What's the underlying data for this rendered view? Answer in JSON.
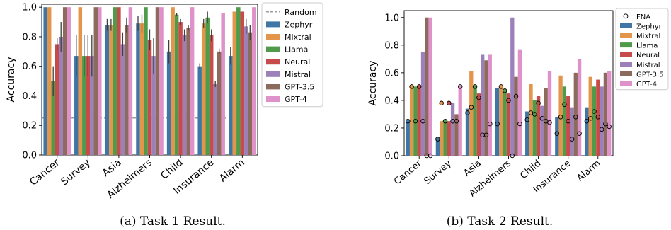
{
  "chart_data": [
    {
      "type": "bar",
      "caption": "(a) Task 1 Result.",
      "ylabel": "Accuracy",
      "ylim": [
        0,
        1.02
      ],
      "yticks": [
        "0.0",
        "0.2",
        "0.4",
        "0.6",
        "0.8",
        "1.0"
      ],
      "categories": [
        "Cancer",
        "Survey",
        "Asia",
        "Alzheimers",
        "Child",
        "Insurance",
        "Alarm"
      ],
      "random_baseline": {
        "name": "Random",
        "value": 0.25,
        "style": "dashed",
        "color": "#7f7f7f"
      },
      "legend_position": "right",
      "series": [
        {
          "name": "Zephyr",
          "color": "#3f76a6",
          "values": [
            1.0,
            0.67,
            0.88,
            0.89,
            0.7,
            0.6,
            0.67
          ],
          "errors": [
            0.0,
            0.14,
            0.04,
            0.05,
            0.08,
            0.02,
            0.06
          ]
        },
        {
          "name": "Mixtral",
          "color": "#e3954b",
          "values": [
            1.0,
            1.0,
            0.88,
            0.89,
            1.0,
            0.89,
            0.97
          ],
          "errors": [
            0.0,
            0.0,
            0.04,
            0.06,
            0.0,
            0.03,
            0.0
          ]
        },
        {
          "name": "Llama",
          "color": "#4f9b4a",
          "values": [
            0.5,
            0.67,
            1.0,
            1.0,
            0.95,
            0.93,
            1.0
          ],
          "errors": [
            0.1,
            0.14,
            0.0,
            0.0,
            0.01,
            0.04,
            0.0
          ]
        },
        {
          "name": "Neural",
          "color": "#c84b4b",
          "values": [
            0.75,
            0.67,
            1.0,
            0.78,
            0.9,
            0.81,
            0.97
          ],
          "errors": [
            0.04,
            0.14,
            0.0,
            0.07,
            0.02,
            0.04,
            0.0
          ]
        },
        {
          "name": "Mistral",
          "color": "#9b80b9",
          "values": [
            0.8,
            0.67,
            0.75,
            0.67,
            0.81,
            0.48,
            0.87
          ],
          "errors": [
            0.1,
            0.14,
            0.08,
            0.12,
            0.04,
            0.02,
            0.05
          ]
        },
        {
          "name": "GPT-3.5",
          "color": "#8c6a5c",
          "values": [
            1.0,
            1.0,
            0.88,
            1.0,
            0.86,
            0.7,
            0.83
          ],
          "errors": [
            0.0,
            0.0,
            0.05,
            0.0,
            0.02,
            0.02,
            0.05
          ]
        },
        {
          "name": "GPT-4",
          "color": "#de92c9",
          "values": [
            1.0,
            1.0,
            1.0,
            1.0,
            1.0,
            0.96,
            1.0
          ],
          "errors": [
            0.0,
            0.0,
            0.0,
            0.0,
            0.0,
            0.0,
            0.0
          ]
        }
      ]
    },
    {
      "type": "bar",
      "caption": "(b) Task 2 Result.",
      "ylabel": "Accuracy",
      "ylim": [
        0,
        1.05
      ],
      "yticks": [
        "0.0",
        "0.2",
        "0.4",
        "0.6",
        "0.8",
        "1.0"
      ],
      "categories": [
        "Cancer",
        "Survey",
        "Asia",
        "Alzheimers",
        "Child",
        "Insurance",
        "Alarm"
      ],
      "legend_position": "right",
      "fna_marker": {
        "name": "FNA",
        "style": "open-circle"
      },
      "series": [
        {
          "name": "Zephyr",
          "color": "#3f76a6",
          "values": [
            0.25,
            0.12,
            0.34,
            0.49,
            0.32,
            0.28,
            0.35
          ],
          "fna": [
            0.25,
            0.12,
            0.31,
            0.23,
            0.26,
            0.16,
            0.25
          ]
        },
        {
          "name": "Mixtral",
          "color": "#e3954b",
          "values": [
            0.5,
            0.25,
            0.61,
            0.5,
            0.52,
            0.58,
            0.57
          ],
          "fna": [
            0.5,
            0.38,
            0.35,
            0.5,
            0.31,
            0.28,
            0.27
          ]
        },
        {
          "name": "Llama",
          "color": "#4f9b4a",
          "values": [
            0.5,
            0.25,
            0.5,
            0.48,
            0.4,
            0.5,
            0.5
          ],
          "fna": [
            0.25,
            0.25,
            0.5,
            0.47,
            0.3,
            0.37,
            0.32
          ]
        },
        {
          "name": "Neural",
          "color": "#c84b4b",
          "values": [
            0.5,
            0.25,
            0.45,
            0.45,
            0.43,
            0.43,
            0.55
          ],
          "fna": [
            0.5,
            0.38,
            0.42,
            0.4,
            0.38,
            0.25,
            0.28
          ]
        },
        {
          "name": "Mistral",
          "color": "#9b80b9",
          "values": [
            0.75,
            0.38,
            0.73,
            1.0,
            0.36,
            0.35,
            0.5
          ],
          "fna": [
            0.25,
            0.25,
            0.15,
            0.0,
            0.27,
            0.12,
            0.19
          ]
        },
        {
          "name": "GPT-3.5",
          "color": "#8c6a5c",
          "values": [
            1.0,
            0.3,
            0.69,
            0.57,
            0.49,
            0.6,
            0.6
          ],
          "fna": [
            0.0,
            0.25,
            0.15,
            0.43,
            0.25,
            0.28,
            0.23
          ]
        },
        {
          "name": "GPT-4",
          "color": "#de92c9",
          "values": [
            1.0,
            0.5,
            0.73,
            0.77,
            0.61,
            0.7,
            0.61
          ],
          "fna": [
            0.0,
            0.5,
            0.23,
            0.23,
            0.24,
            0.16,
            0.21
          ]
        }
      ]
    }
  ]
}
